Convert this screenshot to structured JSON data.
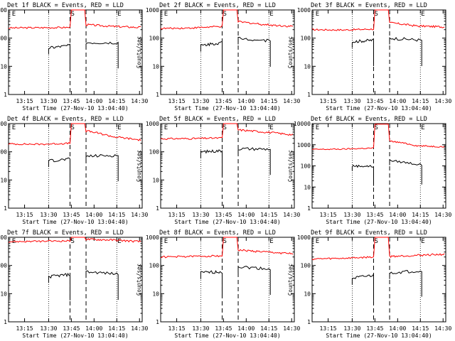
{
  "chart_data": {
    "type": "line",
    "grid": false,
    "y_scale": "log",
    "xlabel": "Start Time (27-Nov-10 13:04:40)",
    "ylabel": "Counts/sec",
    "x_ticks": [
      "13:15",
      "13:30",
      "13:45",
      "14:00",
      "14:15",
      "14:30"
    ],
    "marker_labels": [
      "E",
      "S",
      "E"
    ],
    "line_colors": {
      "black": "#000000",
      "red": "#ff0000"
    },
    "panels": [
      {
        "title": "Det 1f BLACK = Events, RED = LLD",
        "yticks": [
          "1",
          "10",
          "100",
          "1000"
        ],
        "ylim": [
          1,
          1000
        ],
        "series": [
          {
            "values": [
              230,
              235,
              240,
              1000,
              300,
              260,
              240
            ]
          },
          {
            "values": [
              45,
              48,
              55,
              0,
              70,
              75,
              70
            ]
          }
        ]
      },
      {
        "title": "Det 2f BLACK = Events, RED = LLD",
        "yticks": [
          "1",
          "10",
          "100",
          "1000"
        ],
        "ylim": [
          1,
          1000
        ],
        "series": [
          {
            "values": [
              220,
              230,
              260,
              1000,
              380,
              300,
              260
            ]
          },
          {
            "values": [
              55,
              60,
              70,
              0,
              100,
              85,
              80
            ]
          }
        ]
      },
      {
        "title": "Det 3f BLACK = Events, RED = LLD",
        "yticks": [
          "1",
          "10",
          "100",
          "1000"
        ],
        "ylim": [
          1,
          1000
        ],
        "series": [
          {
            "values": [
              200,
              195,
              210,
              1000,
              350,
              270,
              250
            ]
          },
          {
            "values": [
              75,
              80,
              85,
              0,
              100,
              90,
              85
            ]
          }
        ]
      },
      {
        "title": "Det 4f BLACK = Events, RED = LLD",
        "yticks": [
          "1",
          "10",
          "100",
          "1000"
        ],
        "ylim": [
          1,
          1000
        ],
        "series": [
          {
            "values": [
              190,
              185,
              200,
              1000,
              550,
              340,
              260
            ]
          },
          {
            "values": [
              48,
              50,
              55,
              0,
              70,
              72,
              75
            ]
          }
        ]
      },
      {
        "title": "Det 5f BLACK = Events, RED = LLD",
        "yticks": [
          "1",
          "10",
          "100",
          "1000"
        ],
        "ylim": [
          1,
          1000
        ],
        "series": [
          {
            "values": [
              290,
              295,
              310,
              1000,
              600,
              500,
              400
            ]
          },
          {
            "values": [
              100,
              105,
              110,
              0,
              130,
              135,
              125
            ]
          }
        ]
      },
      {
        "title": "Det 6f BLACK = Events, RED = LLD",
        "yticks": [
          "1",
          "10",
          "100",
          "1000",
          "10000"
        ],
        "ylim": [
          1,
          10000
        ],
        "series": [
          {
            "values": [
              600,
              620,
              700,
              9500,
              1500,
              900,
              800
            ]
          },
          {
            "values": [
              100,
              105,
              95,
              0,
              180,
              160,
              110
            ]
          }
        ]
      },
      {
        "title": "Det 7f BLACK = Events, RED = LLD",
        "yticks": [
          "1",
          "10",
          "100",
          "1000"
        ],
        "ylim": [
          1,
          1000
        ],
        "series": [
          {
            "values": [
              700,
              720,
              750,
              1000,
              850,
              800,
              700
            ]
          },
          {
            "values": [
              40,
              42,
              48,
              0,
              60,
              55,
              50
            ]
          }
        ]
      },
      {
        "title": "Det 8f BLACK = Events, RED = LLD",
        "yticks": [
          "1",
          "10",
          "100",
          "1000"
        ],
        "ylim": [
          1,
          1000
        ],
        "series": [
          {
            "values": [
              200,
              210,
              220,
              1000,
              350,
              300,
              260
            ]
          },
          {
            "values": [
              55,
              58,
              60,
              0,
              90,
              80,
              75
            ]
          }
        ]
      },
      {
        "title": "Det 9f BLACK = Events, RED = LLD",
        "yticks": [
          "1",
          "10",
          "100",
          "1000"
        ],
        "ylim": [
          1,
          1000
        ],
        "series": [
          {
            "values": [
              170,
              180,
              200,
              1000,
              210,
              230,
              250
            ]
          },
          {
            "values": [
              35,
              38,
              45,
              0,
              55,
              60,
              65
            ]
          }
        ]
      }
    ]
  }
}
